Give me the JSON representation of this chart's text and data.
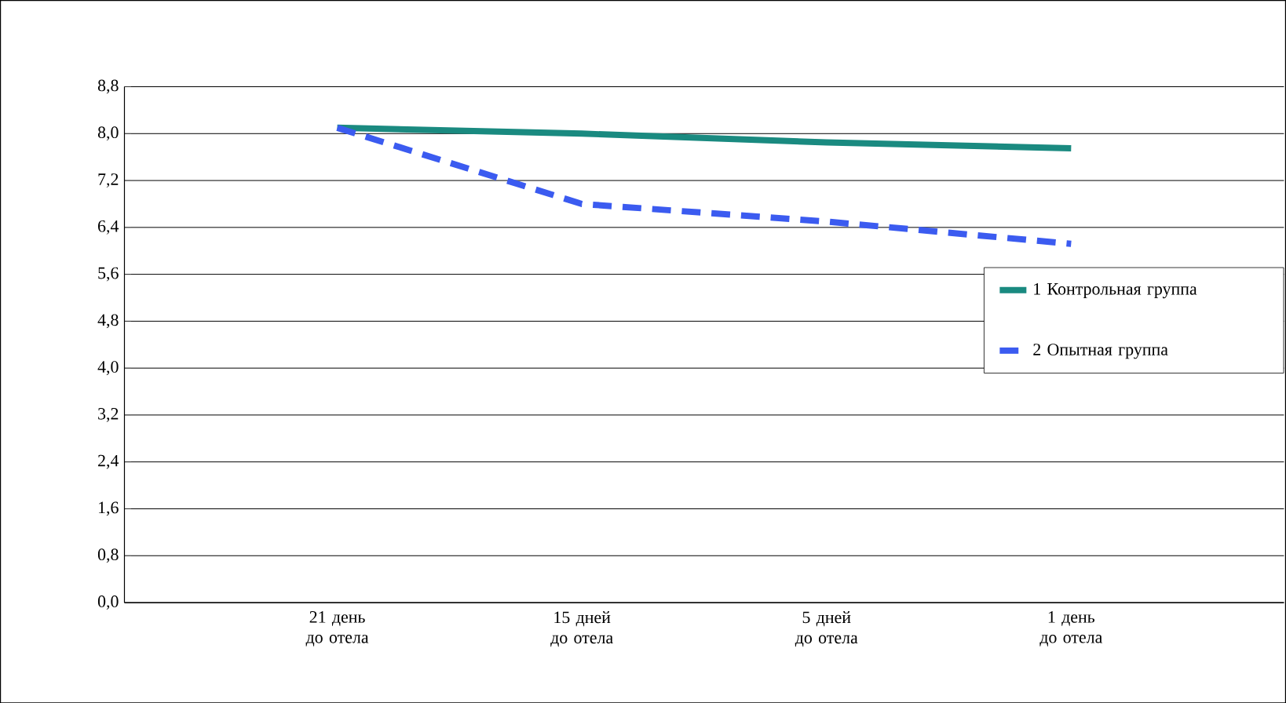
{
  "chart_data": {
    "type": "line",
    "categories": [
      "21 день до отела",
      "15 дней до отела",
      "5 дней до отела",
      "1 день до отела"
    ],
    "series": [
      {
        "name": "1 Контрольная группа",
        "color": "#1a8a80",
        "line_style": "solid",
        "values": [
          8.1,
          8.0,
          7.85,
          7.75
        ]
      },
      {
        "name": "2 Опытная группа",
        "color": "#3b5bf0",
        "line_style": "dashed",
        "values": [
          8.1,
          6.8,
          6.5,
          6.12
        ]
      }
    ],
    "ylim": [
      0,
      8.8
    ],
    "yticks": [
      {
        "value": 0,
        "label": "0,0"
      },
      {
        "value": 0.8,
        "label": "0,8"
      },
      {
        "value": 1.6,
        "label": "1,6"
      },
      {
        "value": 2.4,
        "label": "2,4"
      },
      {
        "value": 3.2,
        "label": "3,2"
      },
      {
        "value": 4.0,
        "label": "4,0"
      },
      {
        "value": 4.8,
        "label": "4,8"
      },
      {
        "value": 5.6,
        "label": "5,6"
      },
      {
        "value": 6.4,
        "label": "6,4"
      },
      {
        "value": 7.2,
        "label": "7,2"
      },
      {
        "value": 8.0,
        "label": "8,0"
      },
      {
        "value": 8.8,
        "label": "8,8"
      }
    ],
    "grid": "y",
    "legend": "right",
    "marker": "none"
  }
}
